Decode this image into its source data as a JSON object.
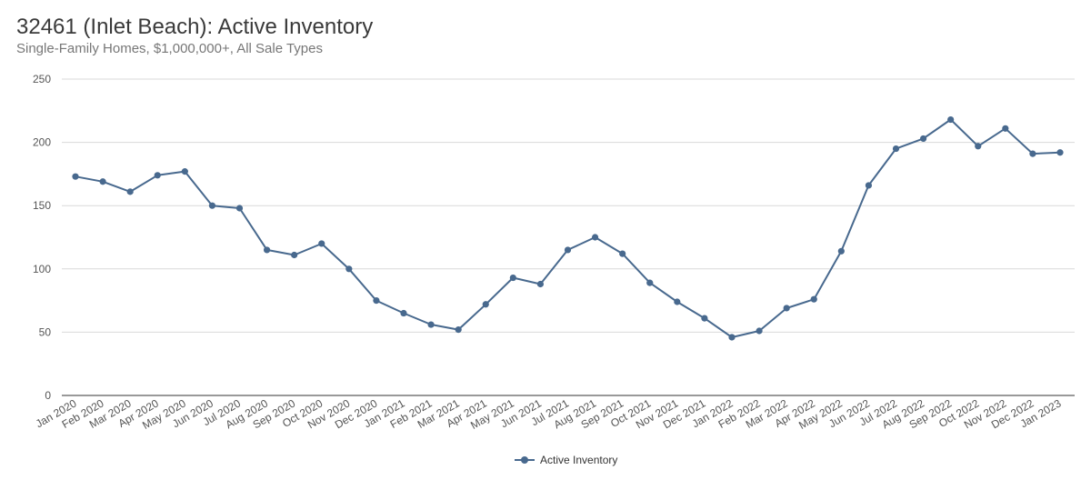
{
  "colors": {
    "series": "#48698e",
    "grid": "#d9d9d9",
    "axis": "#333333"
  },
  "chart_data": {
    "type": "line",
    "title": "32461 (Inlet Beach): Active Inventory",
    "subtitle": "Single-Family Homes, $1,000,000+, All Sale Types",
    "xlabel": "",
    "ylabel": "",
    "ylim": [
      0,
      250
    ],
    "yticks": [
      0,
      50,
      100,
      150,
      200,
      250
    ],
    "grid": true,
    "legend_position": "bottom-center",
    "categories": [
      "Jan 2020",
      "Feb 2020",
      "Mar 2020",
      "Apr 2020",
      "May 2020",
      "Jun 2020",
      "Jul 2020",
      "Aug 2020",
      "Sep 2020",
      "Oct 2020",
      "Nov 2020",
      "Dec 2020",
      "Jan 2021",
      "Feb 2021",
      "Mar 2021",
      "Apr 2021",
      "May 2021",
      "Jun 2021",
      "Jul 2021",
      "Aug 2021",
      "Sep 2021",
      "Oct 2021",
      "Nov 2021",
      "Dec 2021",
      "Jan 2022",
      "Feb 2022",
      "Mar 2022",
      "Apr 2022",
      "May 2022",
      "Jun 2022",
      "Jul 2022",
      "Aug 2022",
      "Sep 2022",
      "Oct 2022",
      "Nov 2022",
      "Dec 2022",
      "Jan 2023"
    ],
    "series": [
      {
        "name": "Active Inventory",
        "values": [
          173,
          169,
          161,
          174,
          177,
          150,
          148,
          115,
          111,
          120,
          100,
          75,
          65,
          56,
          52,
          72,
          93,
          88,
          115,
          125,
          112,
          89,
          74,
          61,
          46,
          51,
          69,
          76,
          114,
          166,
          195,
          203,
          218,
          197,
          211,
          191,
          192
        ]
      }
    ]
  }
}
